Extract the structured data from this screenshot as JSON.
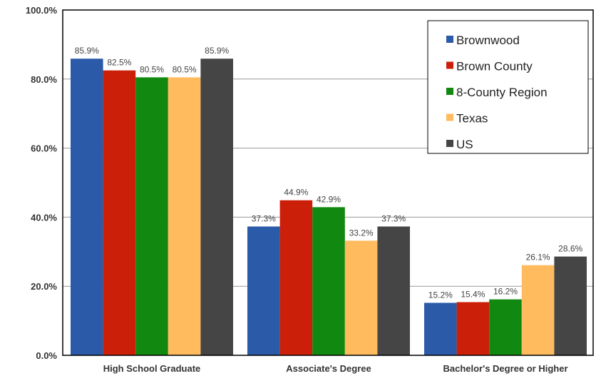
{
  "chart_data": {
    "type": "bar",
    "categories": [
      "High School Graduate",
      "Associate's Degree",
      "Bachelor's Degree or Higher"
    ],
    "series": [
      {
        "name": "Brownwood",
        "color": "#2b5aa8",
        "values": [
          85.9,
          37.3,
          15.2
        ],
        "labels": [
          "85.9%",
          "37.3%",
          "15.2%"
        ]
      },
      {
        "name": "Brown County",
        "color": "#cc1f0a",
        "values": [
          82.5,
          44.9,
          15.4
        ],
        "labels": [
          "82.5%",
          "44.9%",
          "15.4%"
        ]
      },
      {
        "name": "8-County Region",
        "color": "#11880f",
        "values": [
          80.5,
          42.9,
          16.2
        ],
        "labels": [
          "80.5%",
          "42.9%",
          "16.2%"
        ]
      },
      {
        "name": "Texas",
        "color": "#ffbb5e",
        "values": [
          80.5,
          33.2,
          26.1
        ],
        "labels": [
          "80.5%",
          "33.2%",
          "26.1%"
        ]
      },
      {
        "name": "US",
        "color": "#454545",
        "values": [
          85.9,
          37.3,
          28.6
        ],
        "labels": [
          "85.9%",
          "37.3%",
          "28.6%"
        ]
      }
    ],
    "ylim": [
      0,
      100
    ],
    "yticks": [
      0,
      20,
      40,
      60,
      80,
      100
    ],
    "ytick_labels": [
      "0.0%",
      "20.0%",
      "40.0%",
      "60.0%",
      "80.0%",
      "100.0%"
    ],
    "grid": true,
    "legend_position": "top-right"
  }
}
